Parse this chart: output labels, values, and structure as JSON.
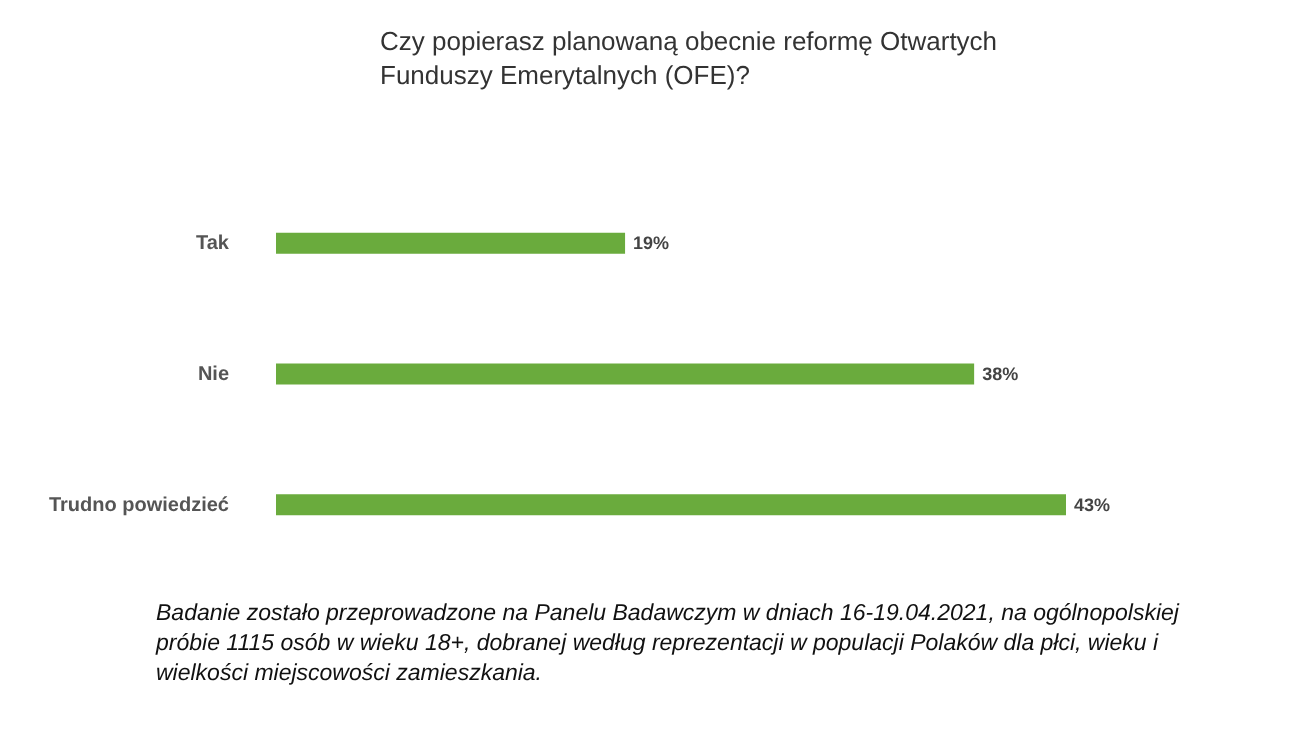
{
  "chart_data": {
    "type": "bar",
    "orientation": "horizontal",
    "title": "Czy popierasz planowaną obecnie reformę Otwartych Funduszy Emerytalnych (OFE)?",
    "categories": [
      "Tak",
      "Nie",
      "Trudno powiedzieć"
    ],
    "values": [
      19,
      38,
      43
    ],
    "value_labels": [
      "19%",
      "38%",
      "43%"
    ],
    "color": "#6aab3d",
    "annotations": [
      "Badanie zostało przeprowadzone na Panelu Badawczym w dniach 16-19.04.2021, na ogólnopolskiej próbie 1115 osób w wieku 18+, dobranej według reprezentacji w populacji Polaków dla płci, wieku i wielkości miejscowości zamieszkania."
    ]
  }
}
